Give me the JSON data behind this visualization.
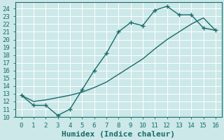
{
  "xlabel": "Humidex (Indice chaleur)",
  "bg_color": "#cce8e8",
  "grid_color": "#ffffff",
  "line_color": "#1a6b6b",
  "xlim": [
    -0.5,
    16.5
  ],
  "ylim": [
    10,
    24.8
  ],
  "xticks": [
    0,
    1,
    2,
    3,
    4,
    5,
    6,
    7,
    8,
    9,
    10,
    11,
    12,
    13,
    14,
    15,
    16
  ],
  "yticks": [
    10,
    11,
    12,
    13,
    14,
    15,
    16,
    17,
    18,
    19,
    20,
    21,
    22,
    23,
    24
  ],
  "line1_x": [
    0,
    1,
    2,
    3,
    4,
    5,
    6,
    7,
    8,
    9,
    10,
    11,
    12,
    13,
    14,
    15,
    16
  ],
  "line1_y": [
    12.8,
    11.5,
    11.5,
    10.2,
    11.0,
    13.5,
    16.0,
    18.2,
    21.0,
    22.2,
    21.8,
    23.8,
    24.3,
    23.2,
    23.2,
    21.5,
    21.2
  ],
  "line2_x": [
    0,
    1,
    2,
    3,
    4,
    5,
    6,
    7,
    8,
    9,
    10,
    11,
    12,
    13,
    14,
    15,
    16
  ],
  "line2_y": [
    12.8,
    12.0,
    12.2,
    12.5,
    12.8,
    13.2,
    13.8,
    14.5,
    15.5,
    16.5,
    17.5,
    18.8,
    20.0,
    21.0,
    22.0,
    22.8,
    21.2
  ],
  "marker": "+",
  "marker_size": 5,
  "line_width": 1.0,
  "xlabel_fontsize": 8,
  "tick_fontsize": 6.5
}
